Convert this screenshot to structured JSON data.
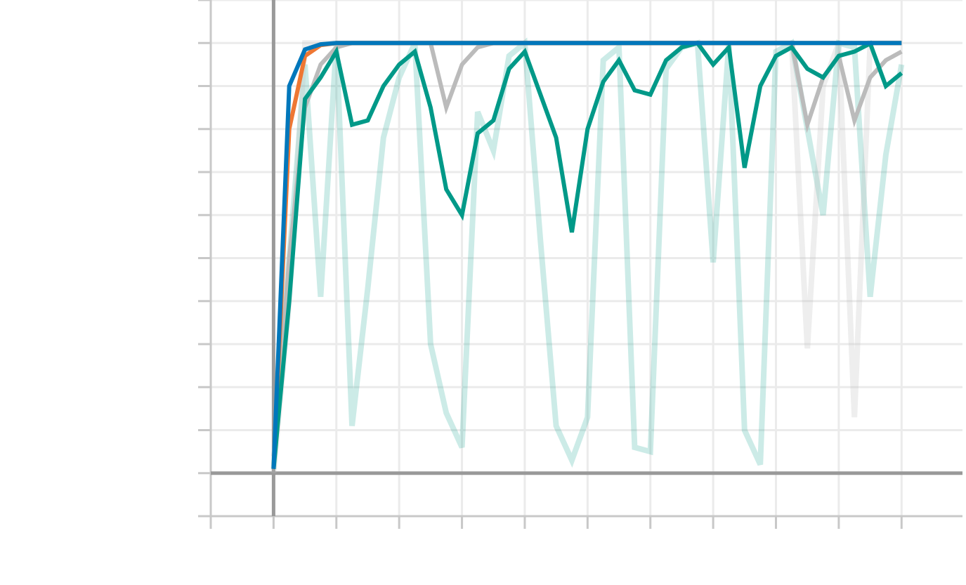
{
  "chart_data": {
    "type": "line",
    "x": [
      0,
      0.25,
      0.5,
      0.75,
      1,
      1.25,
      1.5,
      1.75,
      2,
      2.25,
      2.5,
      2.75,
      3,
      3.25,
      3.5,
      3.75,
      4,
      4.25,
      4.5,
      4.75,
      5,
      5.25,
      5.5,
      5.75,
      6,
      6.25,
      6.5,
      6.75,
      7,
      7.25,
      7.5,
      7.75,
      8,
      8.25,
      8.5,
      8.75,
      9,
      9.25,
      9.5,
      9.75,
      10
    ],
    "series": [
      {
        "color": "#009988",
        "opacity": 0.2,
        "width": 8,
        "values": [
          0.1,
          5,
          9.5,
          4.1,
          10,
          1.1,
          4.3,
          7.8,
          9.2,
          10,
          3,
          1.4,
          0.6,
          8.4,
          7.5,
          9.7,
          10,
          5.4,
          1.1,
          0.3,
          1.3,
          9.6,
          9.9,
          0.6,
          0.5,
          9.4,
          9.9,
          10,
          4.9,
          10,
          1.0,
          0.2,
          9.8,
          10,
          8.0,
          6.0,
          10,
          9.9,
          4.1,
          7.4,
          9.5
        ]
      },
      {
        "color": "#bbbbbb",
        "opacity": 0.25,
        "width": 8,
        "values": [
          0,
          4,
          10,
          10,
          10,
          10,
          10,
          10,
          10,
          10,
          10,
          10,
          10,
          10,
          10,
          10,
          10,
          10,
          10,
          10,
          10,
          10,
          10,
          10,
          10,
          10,
          10,
          10,
          10,
          10,
          10,
          10,
          10,
          10,
          2.9,
          9.0,
          10,
          1.3,
          10,
          10,
          10
        ]
      },
      {
        "color": "#bbbbbb",
        "opacity": 1,
        "width": 6,
        "values": [
          0.4,
          5,
          8.5,
          9.5,
          9.9,
          10,
          10,
          10,
          10,
          10,
          10,
          8.5,
          9.5,
          9.9,
          10,
          10,
          10,
          10,
          10,
          10,
          10,
          10,
          10,
          10,
          10,
          10,
          10,
          10,
          10,
          10,
          10,
          10,
          10,
          10,
          8.1,
          9.2,
          9.7,
          8.2,
          9.2,
          9.6,
          9.8
        ]
      },
      {
        "color": "#ee7733",
        "opacity": 1,
        "width": 6,
        "values": [
          0.1,
          8,
          9.7,
          9.95,
          10,
          10,
          10,
          10,
          10,
          10,
          10,
          10,
          10,
          10,
          10,
          10,
          10,
          10,
          10,
          10,
          10,
          10,
          10,
          10,
          10,
          10,
          10,
          10,
          10,
          10,
          10,
          10,
          10,
          10,
          10,
          10,
          10,
          10,
          10,
          10,
          10
        ]
      },
      {
        "color": "#009988",
        "opacity": 1,
        "width": 6,
        "values": [
          0.1,
          4,
          8.7,
          9.2,
          9.8,
          8.1,
          8.2,
          9.0,
          9.5,
          9.8,
          8.5,
          6.6,
          6.0,
          7.9,
          8.2,
          9.4,
          9.8,
          8.8,
          7.8,
          5.6,
          8.0,
          9.1,
          9.6,
          8.9,
          8.8,
          9.6,
          9.9,
          10,
          9.5,
          9.9,
          7.1,
          9.0,
          9.7,
          9.9,
          9.4,
          9.2,
          9.7,
          9.8,
          9.99,
          9.0,
          9.3
        ]
      },
      {
        "color": "#0077bb",
        "opacity": 1,
        "width": 6,
        "values": [
          0.1,
          9.0,
          9.85,
          9.97,
          10,
          10,
          10,
          10,
          10,
          10,
          10,
          10,
          10,
          10,
          10,
          10,
          10,
          10,
          10,
          10,
          10,
          10,
          10,
          10,
          10,
          10,
          10,
          10,
          10,
          10,
          10,
          10,
          10,
          10,
          10,
          10,
          10,
          10,
          10,
          10,
          10
        ]
      }
    ],
    "xlim": [
      -1,
      10.97
    ],
    "ylim": [
      -1,
      11
    ],
    "xticks": [
      -1,
      0,
      1,
      2,
      3,
      4,
      5,
      6,
      7,
      8,
      9,
      10
    ],
    "yticks": [
      -1,
      0,
      1,
      2,
      3,
      4,
      5,
      6,
      7,
      8,
      9,
      10,
      11
    ],
    "grid": true
  }
}
